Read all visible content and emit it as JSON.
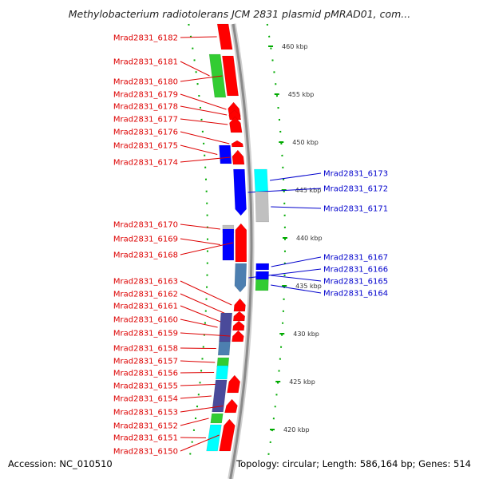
{
  "title": "Methylobacterium radiotolerans JCM 2831 plasmid pMRAD01, com...",
  "accession_text": "Accession: NC_010510",
  "topology_text": "Topology: circular; Length: 586,164 bp; Genes: 514",
  "colors": {
    "forward_label": "#dd0000",
    "reverse_label": "#0000cc",
    "red": "#ff0000",
    "green": "#33cc33",
    "blue": "#0000ff",
    "cyan": "#00ffff",
    "slate": "#4a4a9a",
    "steel": "#4d7fb0",
    "grey": "#c0c0c0",
    "backbone": "#8a8a8a",
    "tick_dot": "#00aa00"
  },
  "scale_labels": [
    {
      "text": "460 kbp",
      "kbp": 460
    },
    {
      "text": "455 kbp",
      "kbp": 455
    },
    {
      "text": "450 kbp",
      "kbp": 450
    },
    {
      "text": "445 kbp",
      "kbp": 445
    },
    {
      "text": "440 kbp",
      "kbp": 440
    },
    {
      "text": "435 kbp",
      "kbp": 435
    },
    {
      "text": "430 kbp",
      "kbp": 430
    },
    {
      "text": "425 kbp",
      "kbp": 425
    },
    {
      "text": "420 kbp",
      "kbp": 420
    }
  ],
  "forward_genes": [
    {
      "label": "Mrad2831_6182",
      "color": "red"
    },
    {
      "label": "Mrad2831_6181",
      "color": "green"
    },
    {
      "label": "Mrad2831_6180",
      "color": "red"
    },
    {
      "label": "Mrad2831_6179",
      "color": "red"
    },
    {
      "label": "Mrad2831_6178",
      "color": "red"
    },
    {
      "label": "Mrad2831_6177",
      "color": "red"
    },
    {
      "label": "Mrad2831_6176",
      "color": "red"
    },
    {
      "label": "Mrad2831_6175",
      "color": "blue"
    },
    {
      "label": "Mrad2831_6174",
      "color": "red"
    },
    {
      "label": "Mrad2831_6170",
      "color": "grey"
    },
    {
      "label": "Mrad2831_6169",
      "color": "blue"
    },
    {
      "label": "Mrad2831_6168",
      "color": "red"
    },
    {
      "label": "Mrad2831_6163",
      "color": "red"
    },
    {
      "label": "Mrad2831_6162",
      "color": "red"
    },
    {
      "label": "Mrad2831_6161",
      "color": "red"
    },
    {
      "label": "Mrad2831_6160",
      "color": "slate"
    },
    {
      "label": "Mrad2831_6159",
      "color": "red"
    },
    {
      "label": "Mrad2831_6158",
      "color": "steel"
    },
    {
      "label": "Mrad2831_6157",
      "color": "green"
    },
    {
      "label": "Mrad2831_6156",
      "color": "cyan"
    },
    {
      "label": "Mrad2831_6155",
      "color": "red"
    },
    {
      "label": "Mrad2831_6154",
      "color": "slate"
    },
    {
      "label": "Mrad2831_6153",
      "color": "red"
    },
    {
      "label": "Mrad2831_6152",
      "color": "green"
    },
    {
      "label": "Mrad2831_6151",
      "color": "cyan"
    },
    {
      "label": "Mrad2831_6150",
      "color": "red"
    }
  ],
  "reverse_genes": [
    {
      "label": "Mrad2831_6173",
      "color": "cyan"
    },
    {
      "label": "Mrad2831_6172",
      "color": "blue"
    },
    {
      "label": "Mrad2831_6171",
      "color": "grey"
    },
    {
      "label": "Mrad2831_6167",
      "color": "blue"
    },
    {
      "label": "Mrad2831_6166",
      "color": "steel"
    },
    {
      "label": "Mrad2831_6165",
      "color": "blue"
    },
    {
      "label": "Mrad2831_6164",
      "color": "green"
    }
  ]
}
